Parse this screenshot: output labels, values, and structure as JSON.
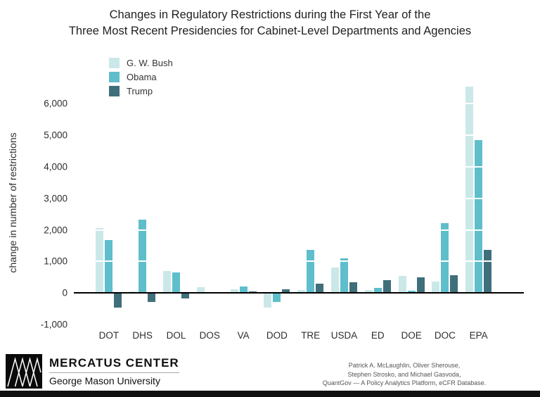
{
  "title_line1": "Changes in Regulatory Restrictions during the First Year of the",
  "title_line2": "Three Most Recent Presidencies for Cabinet-Level Departments and Agencies",
  "chart_data": {
    "type": "bar",
    "title": "Changes in Regulatory Restrictions during the First Year of the Three Most Recent Presidencies for Cabinet-Level Departments and Agencies",
    "ylabel": "change in number of restrictions",
    "xlabel": "",
    "categories": [
      "DOT",
      "DHS",
      "DOL",
      "DOS",
      "VA",
      "DOD",
      "TRE",
      "USDA",
      "ED",
      "DOE",
      "DOC",
      "EPA"
    ],
    "series": [
      {
        "name": "G. W. Bush",
        "color": "#cbe8e9",
        "values": [
          2050,
          60,
          700,
          180,
          110,
          -470,
          90,
          800,
          90,
          540,
          360,
          6550
        ]
      },
      {
        "name": "Obama",
        "color": "#5fbecb",
        "values": [
          1680,
          2320,
          650,
          20,
          200,
          -290,
          1360,
          1090,
          160,
          70,
          2210,
          4850
        ]
      },
      {
        "name": "Trump",
        "color": "#3f6f7a",
        "values": [
          -470,
          -290,
          -180,
          10,
          40,
          110,
          290,
          340,
          400,
          490,
          560,
          1360
        ]
      }
    ],
    "yticks": [
      -1000,
      0,
      1000,
      2000,
      3000,
      4000,
      5000,
      6000
    ],
    "ylim": [
      -1000,
      6700
    ],
    "legend_position": "top-left",
    "grid": "white-overlay-horizontal"
  },
  "footer": {
    "org_name": "MERCATUS CENTER",
    "org_sub": "George Mason University",
    "citation_line1": "Patrick A. McLaughlin, Oliver Sherouse,",
    "citation_line2": "Stephen Strosko, and Michael Gasvoda,",
    "citation_line3": "QuantGov — A Policy Analytics Platform, eCFR Database."
  }
}
